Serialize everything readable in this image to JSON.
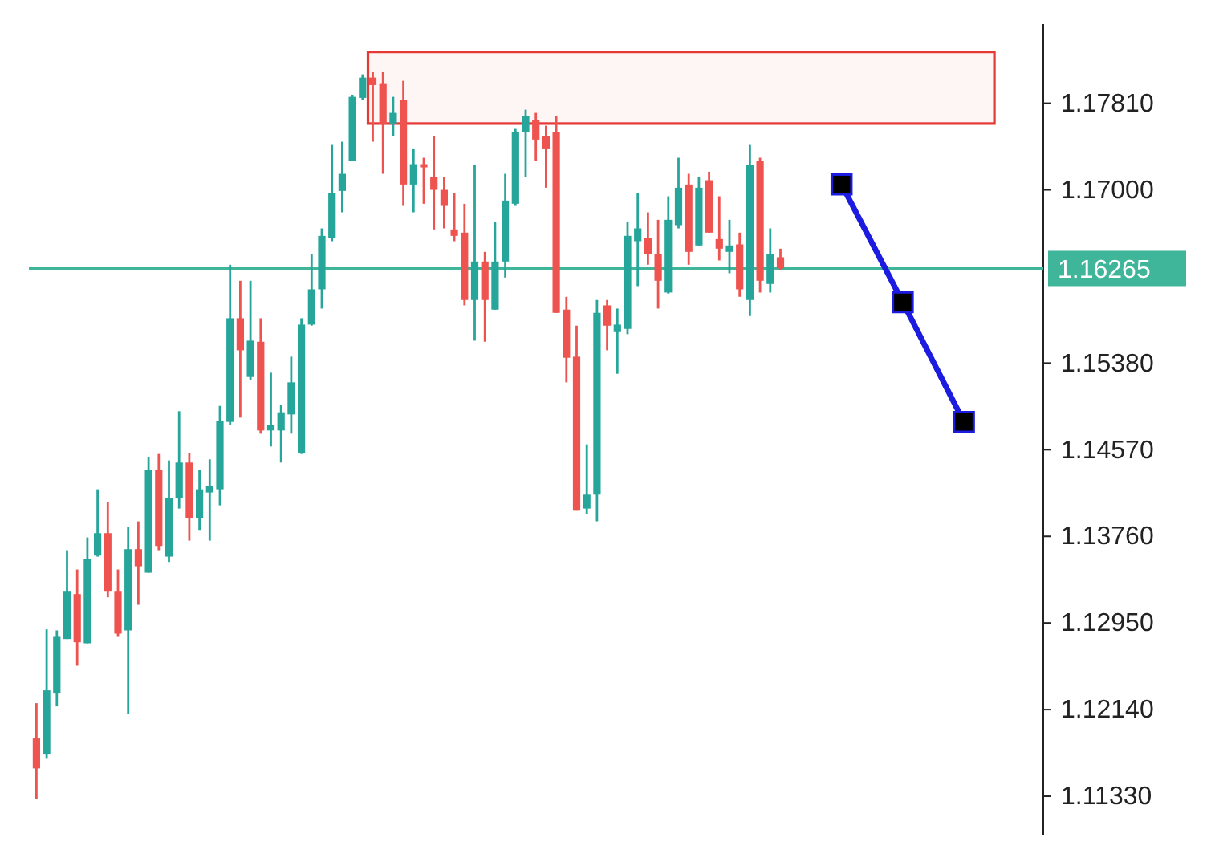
{
  "chart_data": {
    "type": "candlestick",
    "categories": [
      null,
      null,
      null,
      null,
      null,
      null,
      null,
      null,
      null,
      null,
      null,
      null,
      null,
      null,
      null,
      null,
      null,
      null,
      null,
      null,
      null,
      null,
      null,
      null,
      null,
      null,
      null,
      null,
      null,
      null,
      null,
      null,
      null,
      null,
      null,
      null,
      null,
      null,
      null,
      null,
      null,
      null,
      null,
      null,
      null,
      null,
      null,
      null,
      null,
      null,
      null,
      null,
      null,
      null,
      null,
      null,
      null,
      null,
      null,
      null,
      null,
      null,
      null,
      null,
      null,
      null,
      null,
      null,
      null,
      null,
      null,
      null,
      null,
      null,
      null,
      null,
      null,
      null,
      null,
      null,
      null,
      null,
      null,
      null,
      null,
      null,
      null,
      null,
      null,
      null,
      null,
      null,
      null
    ],
    "ohlc": [
      [
        1.1187,
        1.122,
        1.113,
        1.1159
      ],
      [
        1.1172,
        1.1289,
        1.1168,
        1.1232
      ],
      [
        1.1229,
        1.1288,
        1.1217,
        1.1282
      ],
      [
        1.128,
        1.1363,
        1.128,
        1.1325
      ],
      [
        1.1322,
        1.1345,
        1.1255,
        1.1277
      ],
      [
        1.1276,
        1.1375,
        1.1276,
        1.1355
      ],
      [
        1.1358,
        1.142,
        1.1357,
        1.1379
      ],
      [
        1.1379,
        1.1408,
        1.1319,
        1.1325
      ],
      [
        1.1325,
        1.1345,
        1.1282,
        1.1285
      ],
      [
        1.1288,
        1.1385,
        1.121,
        1.1364
      ],
      [
        1.1364,
        1.139,
        1.1312,
        1.1348
      ],
      [
        1.1342,
        1.145,
        1.1342,
        1.1438
      ],
      [
        1.1438,
        1.1453,
        1.1363,
        1.1367
      ],
      [
        1.1357,
        1.1447,
        1.1352,
        1.1412
      ],
      [
        1.1412,
        1.1493,
        1.1402,
        1.1445
      ],
      [
        1.1445,
        1.1454,
        1.1372,
        1.1393
      ],
      [
        1.1393,
        1.1438,
        1.1382,
        1.142
      ],
      [
        1.1417,
        1.1448,
        1.1372,
        1.1423
      ],
      [
        1.142,
        1.1498,
        1.1405,
        1.1484
      ],
      [
        1.1483,
        1.163,
        1.148,
        1.158
      ],
      [
        1.158,
        1.1615,
        1.1487,
        1.155
      ],
      [
        1.1525,
        1.1615,
        1.1522,
        1.1559
      ],
      [
        1.1558,
        1.158,
        1.1472,
        1.1475
      ],
      [
        1.1475,
        1.1529,
        1.146,
        1.148
      ],
      [
        1.1475,
        1.1499,
        1.1445,
        1.1492
      ],
      [
        1.149,
        1.1544,
        1.1472,
        1.152
      ],
      [
        1.1454,
        1.158,
        1.1453,
        1.1574
      ],
      [
        1.1574,
        1.164,
        1.1573,
        1.1607
      ],
      [
        1.1607,
        1.1664,
        1.1589,
        1.1657
      ],
      [
        1.1655,
        1.1742,
        1.1652,
        1.1697
      ],
      [
        1.1699,
        1.1745,
        1.1679,
        1.1715
      ],
      [
        1.1727,
        1.1789,
        1.1727,
        1.1787
      ],
      [
        1.1786,
        1.1808,
        1.1784,
        1.1805
      ],
      [
        1.1805,
        1.181,
        1.1745,
        1.1798
      ],
      [
        1.1799,
        1.181,
        1.1715,
        1.1762
      ],
      [
        1.1762,
        1.1787,
        1.175,
        1.1772
      ],
      [
        1.1784,
        1.1802,
        1.1685,
        1.1705
      ],
      [
        1.1705,
        1.1738,
        1.1679,
        1.1724
      ],
      [
        1.1724,
        1.173,
        1.1687,
        1.1721
      ],
      [
        1.1712,
        1.175,
        1.1663,
        1.17
      ],
      [
        1.17,
        1.1712,
        1.1664,
        1.1685
      ],
      [
        1.1663,
        1.1697,
        1.1652,
        1.1657
      ],
      [
        1.166,
        1.1687,
        1.1592,
        1.1597
      ],
      [
        1.1597,
        1.1723,
        1.1559,
        1.1633
      ],
      [
        1.1633,
        1.1642,
        1.1558,
        1.1597
      ],
      [
        1.1588,
        1.167,
        1.1588,
        1.1633
      ],
      [
        1.1633,
        1.1715,
        1.1618,
        1.169
      ],
      [
        1.1687,
        1.1757,
        1.1685,
        1.1754
      ],
      [
        1.1754,
        1.1775,
        1.1712,
        1.1769
      ],
      [
        1.1765,
        1.1772,
        1.1727,
        1.1747
      ],
      [
        1.175,
        1.176,
        1.1702,
        1.1738
      ],
      [
        1.1754,
        1.1769,
        1.1585,
        1.1585
      ],
      [
        1.1588,
        1.16,
        1.152,
        1.1543
      ],
      [
        1.1544,
        1.1573,
        1.14,
        1.14
      ],
      [
        1.1402,
        1.1462,
        1.1397,
        1.1415
      ],
      [
        1.1415,
        1.1597,
        1.139,
        1.1585
      ],
      [
        1.1592,
        1.1597,
        1.155,
        1.1573
      ],
      [
        1.1567,
        1.1589,
        1.1528,
        1.1574
      ],
      [
        1.157,
        1.167,
        1.1565,
        1.1657
      ],
      [
        1.1652,
        1.1697,
        1.161,
        1.1664
      ],
      [
        1.1655,
        1.1679,
        1.163,
        1.164
      ],
      [
        1.164,
        1.1672,
        1.1589,
        1.1615
      ],
      [
        1.1604,
        1.1694,
        1.1603,
        1.1672
      ],
      [
        1.1667,
        1.173,
        1.1664,
        1.1702
      ],
      [
        1.1705,
        1.1715,
        1.163,
        1.1642
      ],
      [
        1.1648,
        1.1712,
        1.1648,
        1.1702
      ],
      [
        1.1709,
        1.1717,
        1.166,
        1.166
      ],
      [
        1.1654,
        1.1694,
        1.1634,
        1.1645
      ],
      [
        1.1642,
        1.1672,
        1.1622,
        1.1648
      ],
      [
        1.1649,
        1.166,
        1.16,
        1.1607
      ],
      [
        1.1597,
        1.1742,
        1.1582,
        1.1723
      ],
      [
        1.1727,
        1.173,
        1.1604,
        1.1615
      ],
      [
        1.1612,
        1.1664,
        1.1604,
        1.164
      ],
      [
        1.1637,
        1.1645,
        1.1625,
        1.16265
      ],
      null,
      null,
      null,
      null,
      null,
      null,
      null,
      null,
      null,
      null,
      null,
      null,
      null,
      null,
      null,
      null,
      null,
      null,
      null
    ],
    "colors": [
      "#ef5350",
      "#26a69a",
      "#26a69a",
      "#26a69a",
      "#ef5350",
      "#26a69a",
      "#26a69a",
      "#ef5350",
      "#ef5350",
      "#26a69a",
      "#ef5350",
      "#26a69a",
      "#ef5350",
      "#26a69a",
      "#26a69a",
      "#ef5350",
      "#26a69a",
      "#26a69a",
      "#26a69a",
      "#26a69a",
      "#ef5350",
      "#26a69a",
      "#ef5350",
      "#26a69a",
      "#26a69a",
      "#26a69a",
      "#26a69a",
      "#26a69a",
      "#26a69a",
      "#26a69a",
      "#26a69a",
      "#26a69a",
      "#26a69a",
      "#ef5350",
      "#ef5350",
      "#26a69a",
      "#ef5350",
      "#26a69a",
      "#ef5350",
      "#ef5350",
      "#ef5350",
      "#ef5350",
      "#ef5350",
      "#26a69a",
      "#ef5350",
      "#26a69a",
      "#26a69a",
      "#26a69a",
      "#26a69a",
      "#ef5350",
      "#ef5350",
      "#ef5350",
      "#ef5350",
      "#ef5350",
      "#26a69a",
      "#26a69a",
      "#ef5350",
      "#26a69a",
      "#26a69a",
      "#26a69a",
      "#ef5350",
      "#ef5350",
      "#26a69a",
      "#26a69a",
      "#ef5350",
      "#26a69a",
      "#ef5350",
      "#ef5350",
      "#26a69a",
      "#ef5350",
      "#26a69a",
      "#ef5350",
      "#26a69a",
      "#ef5350",
      null,
      null,
      null,
      null,
      null,
      null,
      null,
      null,
      null,
      null,
      null,
      null,
      null,
      null,
      null,
      null,
      null,
      null,
      null
    ],
    "series": [
      {
        "type": "line",
        "values": [
          null,
          null,
          null,
          null,
          null,
          null,
          null,
          null,
          null,
          null,
          null,
          null,
          null,
          null,
          null,
          null,
          null,
          null,
          null,
          null,
          null,
          null,
          null,
          null,
          null,
          null,
          null,
          null,
          null,
          null,
          null,
          null,
          null,
          null,
          null,
          null,
          null,
          null,
          null,
          null,
          null,
          null,
          null,
          null,
          null,
          null,
          null,
          null,
          null,
          null,
          null,
          null,
          null,
          null,
          null,
          null,
          null,
          null,
          null,
          null,
          null,
          null,
          null,
          null,
          null,
          null,
          null,
          null,
          null,
          null,
          null,
          null,
          null,
          null,
          null,
          null,
          null,
          null,
          null,
          1.1705,
          null,
          null,
          null,
          null,
          null,
          1.1595,
          null,
          null,
          null,
          null,
          null,
          1.1483,
          null
        ],
        "color": "#1c1ce0"
      }
    ],
    "marker": "square",
    "ylim": [
      1.1097,
      1.1855
    ],
    "yticks": [
      {
        "value": 1.1133,
        "label": "1.11330"
      },
      {
        "value": 1.1214,
        "label": "1.12140"
      },
      {
        "value": 1.1295,
        "label": "1.12950"
      },
      {
        "value": 1.1376,
        "label": "1.13760"
      },
      {
        "value": 1.1457,
        "label": "1.14570"
      },
      {
        "value": 1.1538,
        "label": "1.15380"
      },
      {
        "value": 1.17,
        "label": "1.17000"
      },
      {
        "value": 1.1781,
        "label": "1.17810"
      }
    ],
    "tick_labels": "y",
    "ref_lines": [
      {
        "axis": "y",
        "value": 1.16265,
        "label": "1.16265",
        "color": "#3fb59a"
      }
    ],
    "bands": [
      {
        "axis": "y",
        "from": 1.1762,
        "to": 1.1829,
        "color": "#e53935"
      }
    ]
  }
}
